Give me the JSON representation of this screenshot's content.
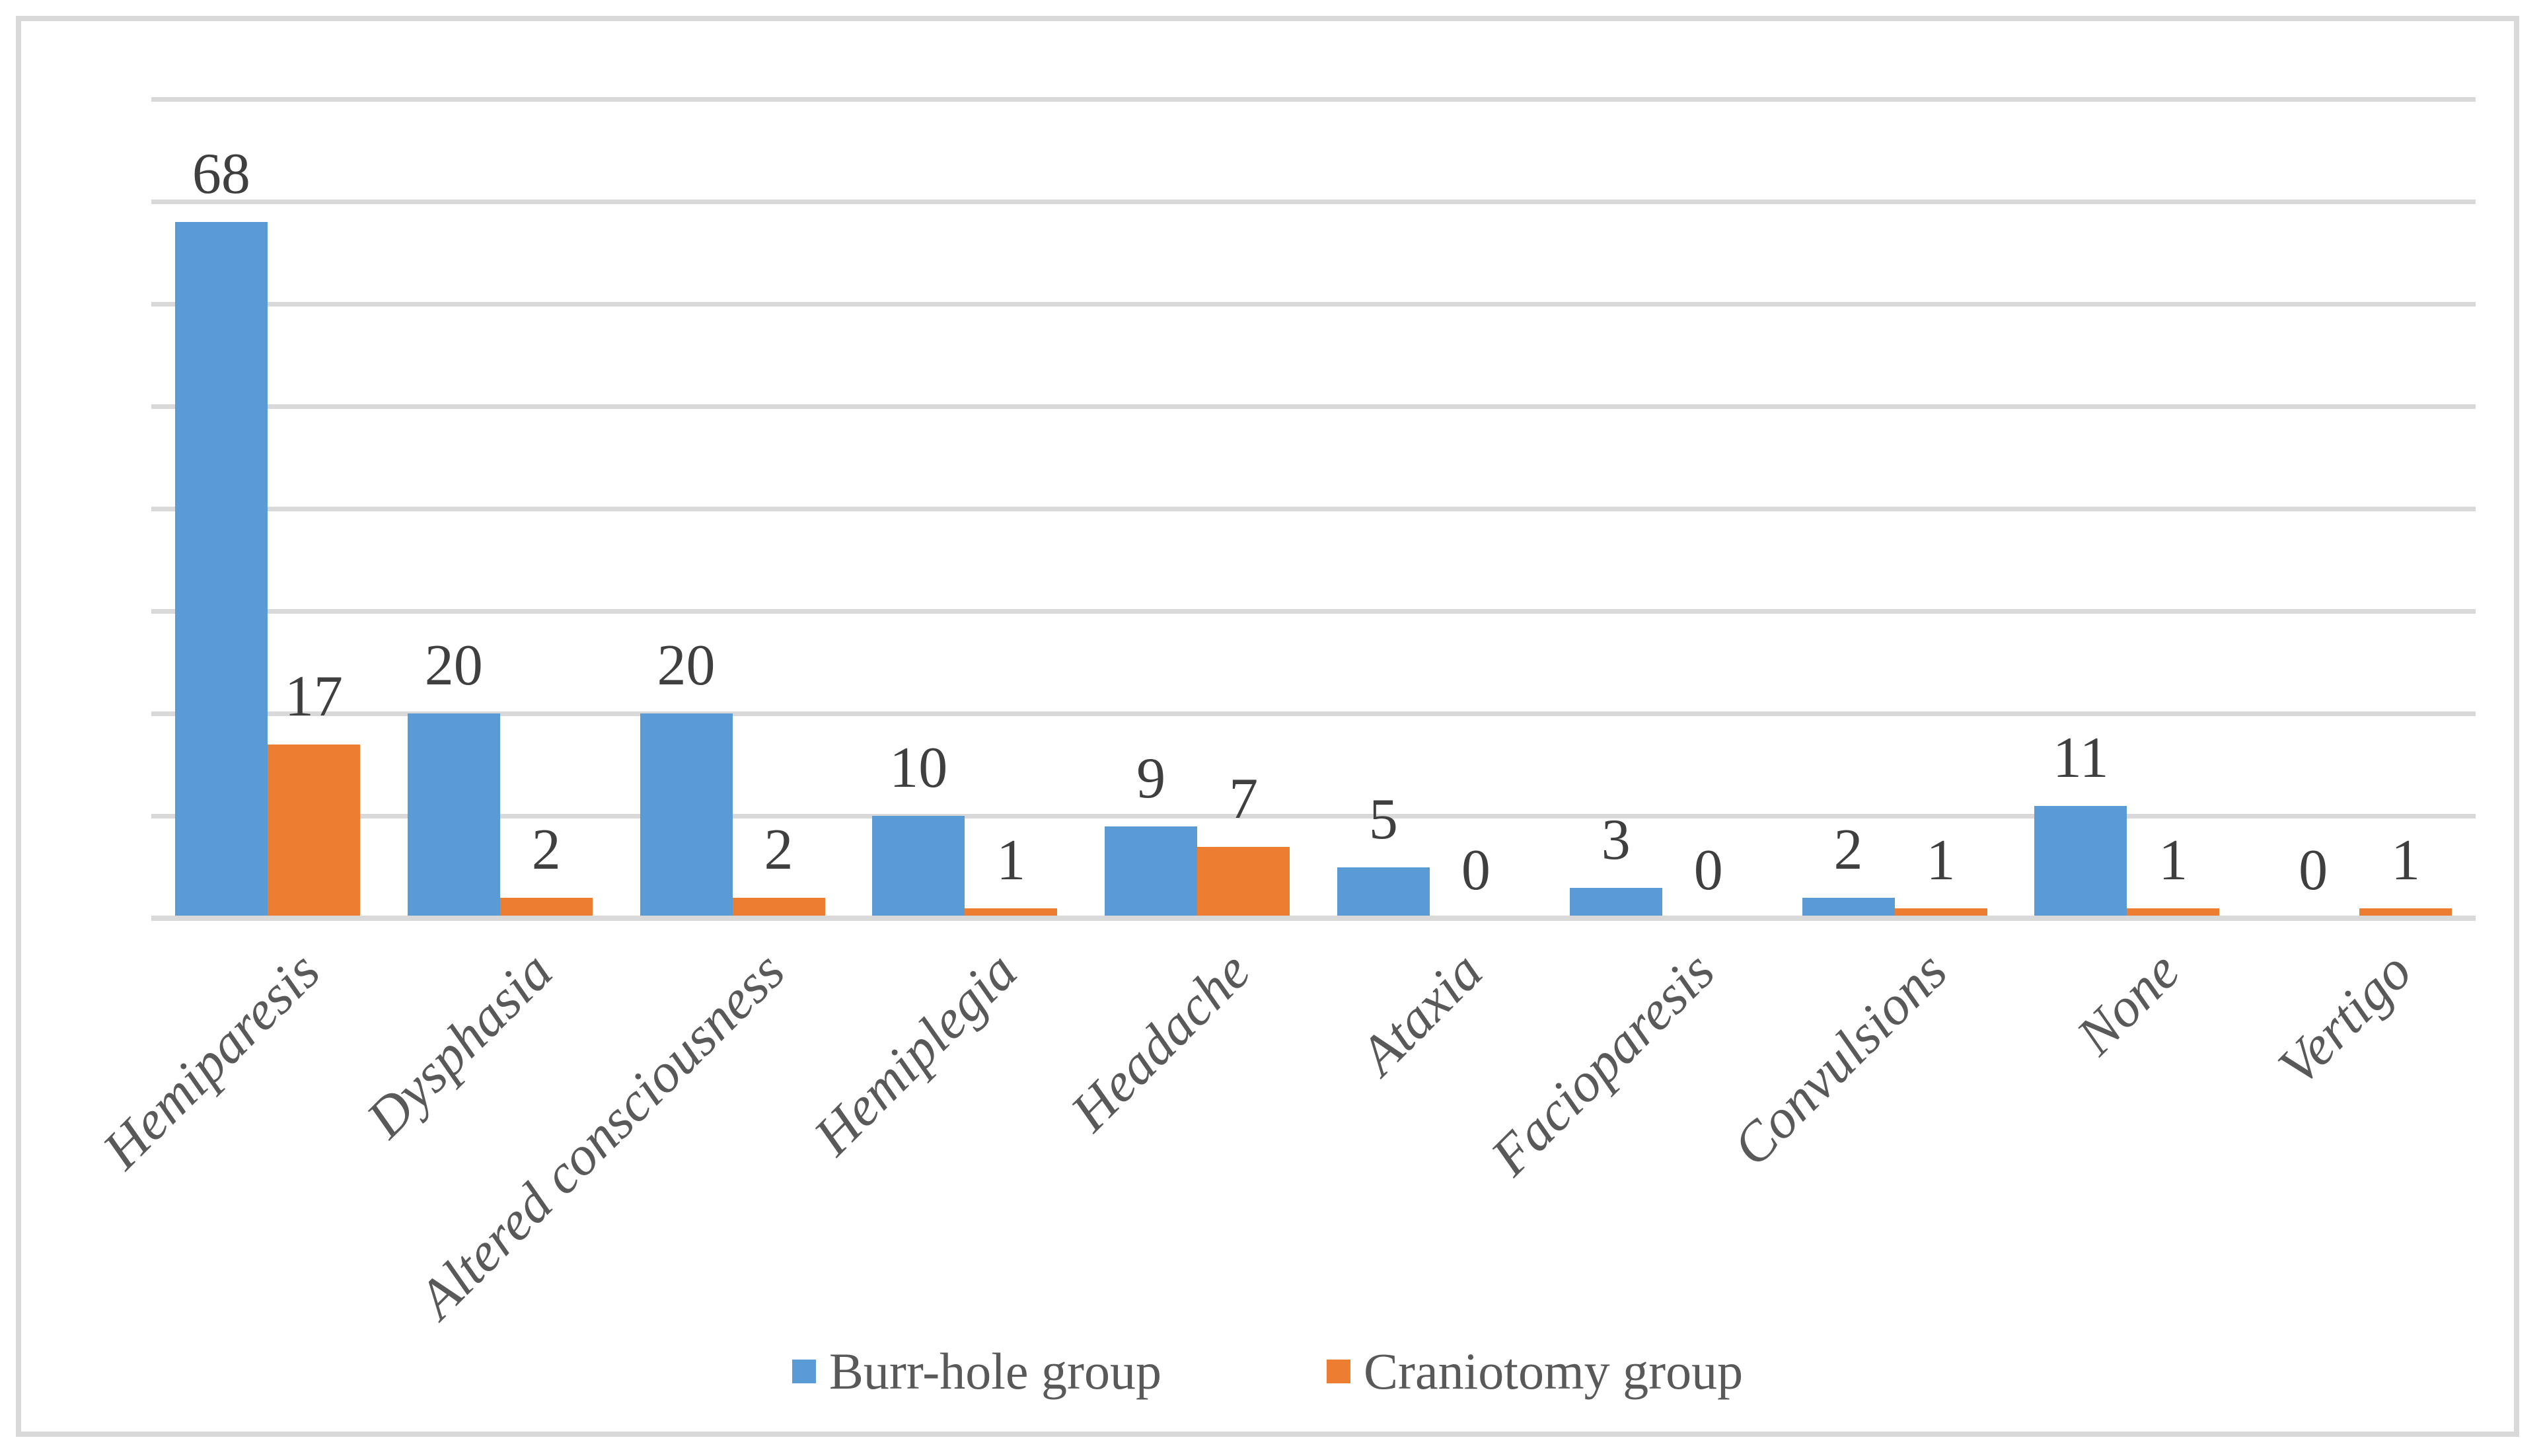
{
  "chart_data": {
    "type": "bar",
    "title": "",
    "xlabel": "",
    "ylabel": "",
    "categories": [
      "Hemiparesis",
      "Dysphasia",
      "Altered consciousness",
      "Hemiplegia",
      "Headache",
      "Ataxia",
      "Facioparesis",
      "Convulsions",
      "None",
      "Vertigo"
    ],
    "series": [
      {
        "name": "Burr-hole group",
        "color": "#5B9BD5",
        "values": [
          68,
          20,
          20,
          10,
          9,
          5,
          3,
          2,
          11,
          0
        ]
      },
      {
        "name": "Craniotomy group",
        "color": "#ED7D31",
        "values": [
          17,
          2,
          2,
          1,
          7,
          0,
          0,
          1,
          1,
          1
        ]
      }
    ],
    "ylim": [
      0,
      80
    ],
    "gridline_step": 10,
    "grid": true,
    "y_tick_labels_shown": false,
    "data_labels_shown": true,
    "legend_position": "bottom",
    "category_label_rotation_deg": 45
  },
  "colors": {
    "background": "#FFFFFF",
    "frame_border": "#D9D9D9",
    "gridline": "#D9D9D9",
    "axis_line": "#D9D9D9",
    "data_label_text": "#3F3F3F",
    "category_label_text": "#595959",
    "legend_text": "#595959"
  }
}
